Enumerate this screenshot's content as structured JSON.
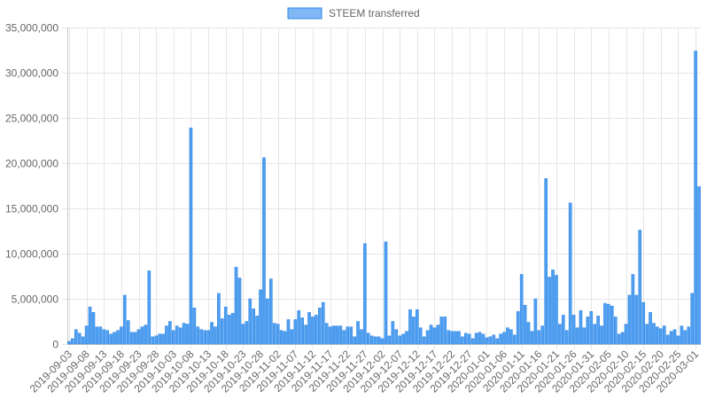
{
  "chart_data": {
    "type": "bar",
    "legend": {
      "position": "top",
      "label": "STEEM transferred"
    },
    "colors": {
      "bar_fill": "#4f9ff0",
      "bar_stroke": "#2f86e6",
      "legend_fill": "#7fb8f5"
    },
    "ylim": [
      0,
      35000000
    ],
    "y_ticks": [
      "0",
      "5,000,000",
      "10,000,000",
      "15,000,000",
      "20,000,000",
      "25,000,000",
      "30,000,000",
      "35,000,000"
    ],
    "y_tick_values": [
      0,
      5000000,
      10000000,
      15000000,
      20000000,
      25000000,
      30000000,
      35000000
    ],
    "grid": true,
    "x_start": "2019-09-03",
    "x_end": "2020-03-01",
    "x_tick_labels": [
      "2019-09-03",
      "2019-09-08",
      "2019-09-13",
      "2019-09-18",
      "2019-09-23",
      "2019-09-28",
      "2019-10-03",
      "2019-10-08",
      "2019-10-13",
      "2019-10-18",
      "2019-10-23",
      "2019-10-28",
      "2019-11-02",
      "2019-11-07",
      "2019-11-12",
      "2019-11-17",
      "2019-11-22",
      "2019-11-27",
      "2019-12-02",
      "2019-12-07",
      "2019-12-12",
      "2019-12-17",
      "2019-12-22",
      "2019-12-27",
      "2020-01-01",
      "2020-01-06",
      "2020-01-11",
      "2020-01-16",
      "2020-01-21",
      "2020-01-26",
      "2020-01-31",
      "2020-02-05",
      "2020-02-10",
      "2020-02-15",
      "2020-02-20",
      "2020-02-25",
      "2020-03-01"
    ],
    "values": [
      300000,
      600000,
      1600000,
      1200000,
      800000,
      2000000,
      4100000,
      3500000,
      1900000,
      1900000,
      1600000,
      1500000,
      1100000,
      1300000,
      1500000,
      1900000,
      5400000,
      2600000,
      1300000,
      1300000,
      1600000,
      1900000,
      2100000,
      8100000,
      800000,
      900000,
      1100000,
      1100000,
      2000000,
      2500000,
      1500000,
      2000000,
      1800000,
      2300000,
      2200000,
      23900000,
      4000000,
      1900000,
      1600000,
      1500000,
      1500000,
      2400000,
      1900000,
      5600000,
      2800000,
      4100000,
      3200000,
      3400000,
      8500000,
      7300000,
      2200000,
      2500000,
      5000000,
      3900000,
      3100000,
      6000000,
      20600000,
      5000000,
      7200000,
      2300000,
      2200000,
      1500000,
      1400000,
      2700000,
      1600000,
      2700000,
      3700000,
      2900000,
      2100000,
      3500000,
      3000000,
      3200000,
      4000000,
      4600000,
      2300000,
      1900000,
      2000000,
      2000000,
      2000000,
      1500000,
      1900000,
      1900000,
      800000,
      2500000,
      1600000,
      11100000,
      1200000,
      900000,
      800000,
      800000,
      600000,
      11300000,
      900000,
      2500000,
      1600000,
      900000,
      1100000,
      1400000,
      3800000,
      3000000,
      3800000,
      1800000,
      800000,
      1500000,
      2100000,
      1800000,
      2100000,
      3000000,
      3000000,
      1500000,
      1400000,
      1400000,
      1400000,
      800000,
      1200000,
      1100000,
      600000,
      1200000,
      1300000,
      1100000,
      700000,
      800000,
      1000000,
      600000,
      1100000,
      1300000,
      1800000,
      1600000,
      1000000,
      3600000,
      7700000,
      4300000,
      2400000,
      1400000,
      5000000,
      1500000,
      2000000,
      18300000,
      7400000,
      8200000,
      7600000,
      2200000,
      3200000,
      1500000,
      15600000,
      3200000,
      1800000,
      3700000,
      1800000,
      3000000,
      3600000,
      2200000,
      3100000,
      2000000,
      4500000,
      4400000,
      4200000,
      3000000,
      1100000,
      1300000,
      2200000,
      5400000,
      7700000,
      5400000,
      12600000,
      4600000,
      2200000,
      3500000,
      2300000,
      1900000,
      1700000,
      2000000,
      1000000,
      1400000,
      1600000,
      900000,
      2000000,
      1500000,
      1900000,
      5600000,
      32400000,
      17400000
    ]
  }
}
